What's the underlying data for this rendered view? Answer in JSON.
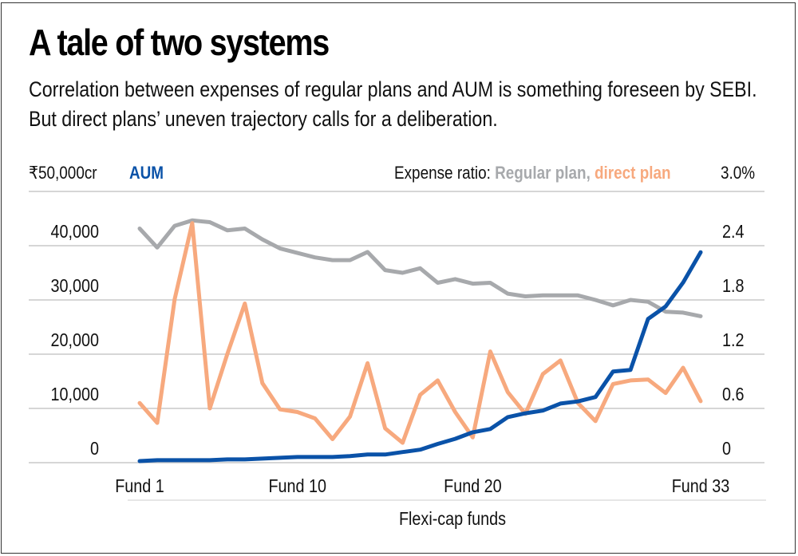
{
  "header": {
    "title": "A tale of two systems",
    "subtitle": "Correlation between expenses of regular plans and AUM is something foreseen by SEBI. But direct plans’ uneven trajectory calls for a deliberation."
  },
  "colors": {
    "aum": "#0a52a8",
    "regular": "#a7a9ac",
    "direct": "#f7a97e",
    "grid": "#c8c8c8",
    "text": "#111111"
  },
  "chart_data": {
    "type": "line",
    "title": "A tale of two systems",
    "xlabel": "Flexi-cap funds",
    "ylabel_left": "AUM (₹ cr)",
    "ylabel_right": "Expense ratio (%)",
    "left_axis_header": {
      "unit_top": "₹50,000cr",
      "series_label": "AUM"
    },
    "right_axis_header": {
      "prefix": "Expense ratio: ",
      "regular_label": "Regular plan,",
      "direct_label": "direct plan",
      "unit_top": "3.0%"
    },
    "ylim_left": [
      0,
      50000
    ],
    "ylim_right": [
      0,
      3.0
    ],
    "left_ticks": [
      "0",
      "10,000",
      "20,000",
      "30,000",
      "40,000"
    ],
    "right_ticks": [
      "0",
      "0.6",
      "1.2",
      "1.8",
      "2.4"
    ],
    "x_tick_labels": [
      {
        "fund": 1,
        "label": "Fund 1"
      },
      {
        "fund": 10,
        "label": "Fund 10"
      },
      {
        "fund": 20,
        "label": "Fund 20"
      },
      {
        "fund": 33,
        "label": "Fund 33"
      }
    ],
    "grid": true,
    "x": [
      1,
      2,
      3,
      4,
      5,
      6,
      7,
      8,
      9,
      10,
      11,
      12,
      13,
      14,
      15,
      16,
      17,
      18,
      19,
      20,
      21,
      22,
      23,
      24,
      25,
      26,
      27,
      28,
      29,
      30,
      31,
      32,
      33
    ],
    "series": [
      {
        "name": "AUM",
        "axis": "left",
        "values": [
          300,
          450,
          450,
          450,
          450,
          600,
          600,
          750,
          900,
          1050,
          1050,
          1050,
          1200,
          1500,
          1500,
          1950,
          2400,
          3450,
          4400,
          5600,
          6200,
          8400,
          9100,
          9600,
          10900,
          11300,
          12100,
          16800,
          17100,
          26500,
          28800,
          33200,
          38800
        ]
      },
      {
        "name": "Regular plan",
        "axis": "right",
        "values": [
          2.59,
          2.38,
          2.62,
          2.68,
          2.66,
          2.57,
          2.59,
          2.47,
          2.37,
          2.32,
          2.27,
          2.24,
          2.24,
          2.33,
          2.13,
          2.1,
          2.15,
          1.99,
          2.03,
          1.98,
          1.99,
          1.87,
          1.84,
          1.85,
          1.85,
          1.85,
          1.8,
          1.74,
          1.8,
          1.78,
          1.67,
          1.66,
          1.62
        ]
      },
      {
        "name": "direct plan",
        "axis": "right",
        "values": [
          0.66,
          0.44,
          1.81,
          2.65,
          0.6,
          1.2,
          1.76,
          0.88,
          0.59,
          0.56,
          0.49,
          0.26,
          0.51,
          1.1,
          0.38,
          0.22,
          0.75,
          0.91,
          0.56,
          0.28,
          1.23,
          0.78,
          0.54,
          0.98,
          1.13,
          0.66,
          0.46,
          0.87,
          0.91,
          0.92,
          0.77,
          1.05,
          0.68
        ]
      }
    ]
  }
}
